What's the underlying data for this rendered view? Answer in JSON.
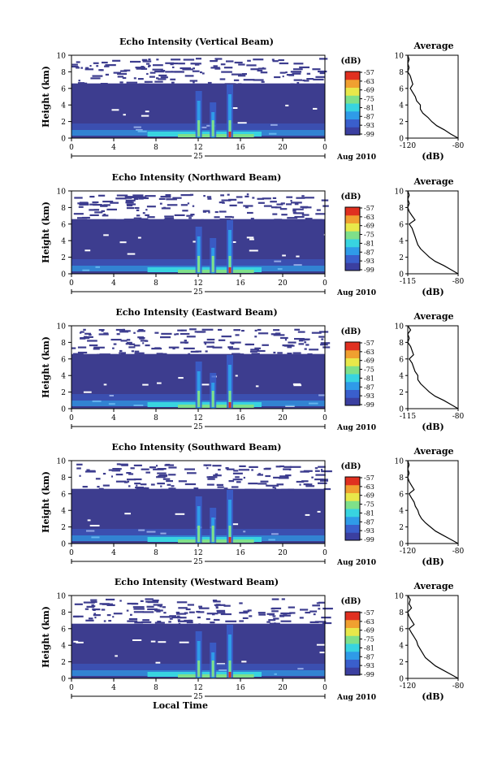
{
  "x_axis_label": "Local Time",
  "day_label": "25",
  "month_label": "Aug 2010",
  "colorbar_unit": "(dB)",
  "colorbar_ticks": [
    "-57",
    "-63",
    "-69",
    "-75",
    "-81",
    "-87",
    "-93",
    "-99"
  ],
  "colormap": [
    "#3b3fa0",
    "#3a5fcc",
    "#2f9be8",
    "#38d4e0",
    "#7fe08a",
    "#e8e84a",
    "#f0a030",
    "#e03020"
  ],
  "palette": {
    "background": "#3d3d8f",
    "axis": "#000000"
  },
  "chart_data": [
    {
      "type": "heatmap",
      "title": "Echo Intensity (Vertical Beam)",
      "xlabel": "",
      "ylabel": "Height (km)",
      "x_ticks": [
        "0",
        "4",
        "8",
        "12",
        "16",
        "20",
        "0"
      ],
      "y_ticks": [
        "0",
        "2",
        "4",
        "6",
        "8",
        "10"
      ],
      "xlim": [
        0,
        24
      ],
      "ylim": [
        0,
        10
      ],
      "clim": [
        -99,
        -57
      ],
      "profile": {
        "title": "Average",
        "xlabel": "(dB)",
        "x_ticks": [
          "-120",
          "-80"
        ],
        "xlim": [
          -120,
          -80
        ],
        "height": [
          0,
          0.5,
          1,
          1.5,
          2,
          2.5,
          3,
          3.5,
          4,
          4.5,
          5,
          5.5,
          6,
          6.5,
          7,
          7.5,
          8,
          8.5,
          9,
          9.5,
          10
        ],
        "db": [
          -80,
          -86,
          -91,
          -97,
          -101,
          -104,
          -108,
          -110,
          -110,
          -113,
          -114,
          -116,
          -118,
          -116,
          -117,
          -118,
          -120,
          -119,
          -120,
          -119,
          -120
        ]
      }
    },
    {
      "type": "heatmap",
      "title": "Echo Intensity (Northward Beam)",
      "xlabel": "",
      "ylabel": "Height (km)",
      "x_ticks": [
        "0",
        "4",
        "8",
        "12",
        "16",
        "20",
        "0"
      ],
      "y_ticks": [
        "0",
        "2",
        "4",
        "6",
        "8",
        "10"
      ],
      "xlim": [
        0,
        24
      ],
      "ylim": [
        0,
        10
      ],
      "clim": [
        -99,
        -57
      ],
      "profile": {
        "title": "Average",
        "xlabel": "(dB)",
        "x_ticks": [
          "-115",
          "-80"
        ],
        "xlim": [
          -115,
          -80
        ],
        "height": [
          0,
          0.5,
          1,
          1.5,
          2,
          2.5,
          3,
          3.5,
          4,
          4.5,
          5,
          5.5,
          6,
          6.5,
          7,
          7.5,
          8,
          8.5,
          9,
          9.5,
          10
        ],
        "db": [
          -80,
          -85,
          -90,
          -96,
          -100,
          -103,
          -106,
          -108,
          -109,
          -110,
          -111,
          -112,
          -114,
          -110,
          -112,
          -114,
          -115,
          -114,
          -115,
          -114,
          -115
        ]
      }
    },
    {
      "type": "heatmap",
      "title": "Echo Intensity (Eastward Beam)",
      "xlabel": "",
      "ylabel": "Height (km)",
      "x_ticks": [
        "0",
        "4",
        "8",
        "12",
        "16",
        "20",
        "0"
      ],
      "y_ticks": [
        "0",
        "2",
        "4",
        "6",
        "8",
        "10"
      ],
      "xlim": [
        0,
        24
      ],
      "ylim": [
        0,
        10
      ],
      "clim": [
        -99,
        -57
      ],
      "profile": {
        "title": "Average",
        "xlabel": "(dB)",
        "x_ticks": [
          "-115",
          "-80"
        ],
        "xlim": [
          -115,
          -80
        ],
        "height": [
          0,
          0.5,
          1,
          1.5,
          2,
          2.5,
          3,
          3.5,
          4,
          4.5,
          5,
          5.5,
          6,
          6.5,
          7,
          7.5,
          8,
          8.5,
          9,
          9.5,
          10
        ],
        "db": [
          -80,
          -85,
          -90,
          -96,
          -100,
          -103,
          -106,
          -108,
          -108,
          -110,
          -111,
          -112,
          -114,
          -111,
          -112,
          -113,
          -115,
          -114,
          -115,
          -113,
          -115
        ]
      }
    },
    {
      "type": "heatmap",
      "title": "Echo Intensity (Southward Beam)",
      "xlabel": "",
      "ylabel": "Height (km)",
      "x_ticks": [
        "0",
        "4",
        "8",
        "12",
        "16",
        "20",
        "0"
      ],
      "y_ticks": [
        "0",
        "2",
        "4",
        "6",
        "8",
        "10"
      ],
      "xlim": [
        0,
        24
      ],
      "ylim": [
        0,
        10
      ],
      "clim": [
        -99,
        -57
      ],
      "profile": {
        "title": "Average",
        "xlabel": "(dB)",
        "x_ticks": [
          "-120",
          "-80"
        ],
        "xlim": [
          -120,
          -80
        ],
        "height": [
          0,
          0.5,
          1,
          1.5,
          2,
          2.5,
          3,
          3.5,
          4,
          4.5,
          5,
          5.5,
          6,
          6.5,
          7,
          7.5,
          8,
          8.5,
          9,
          9.5,
          10
        ],
        "db": [
          -80,
          -86,
          -92,
          -98,
          -102,
          -106,
          -109,
          -111,
          -112,
          -114,
          -115,
          -117,
          -119,
          -115,
          -117,
          -119,
          -120,
          -119,
          -120,
          -119,
          -120
        ]
      }
    },
    {
      "type": "heatmap",
      "title": "Echo Intensity (Westward Beam)",
      "xlabel": "Local Time",
      "ylabel": "Height (km)",
      "x_ticks": [
        "0",
        "4",
        "8",
        "12",
        "16",
        "20",
        "0"
      ],
      "y_ticks": [
        "0",
        "2",
        "4",
        "6",
        "8",
        "10"
      ],
      "xlim": [
        0,
        24
      ],
      "ylim": [
        0,
        10
      ],
      "clim": [
        -99,
        -57
      ],
      "profile": {
        "title": "Average",
        "xlabel": "(dB)",
        "x_ticks": [
          "-120",
          "-80"
        ],
        "xlim": [
          -120,
          -80
        ],
        "height": [
          0,
          0.5,
          1,
          1.5,
          2,
          2.5,
          3,
          3.5,
          4,
          4.5,
          5,
          5.5,
          6,
          6.5,
          7,
          7.5,
          8,
          8.5,
          9,
          9.5,
          10
        ],
        "db": [
          -80,
          -86,
          -92,
          -98,
          -102,
          -106,
          -108,
          -110,
          -112,
          -113,
          -115,
          -117,
          -119,
          -115,
          -117,
          -119,
          -120,
          -117,
          -119,
          -118,
          -120
        ]
      }
    }
  ]
}
